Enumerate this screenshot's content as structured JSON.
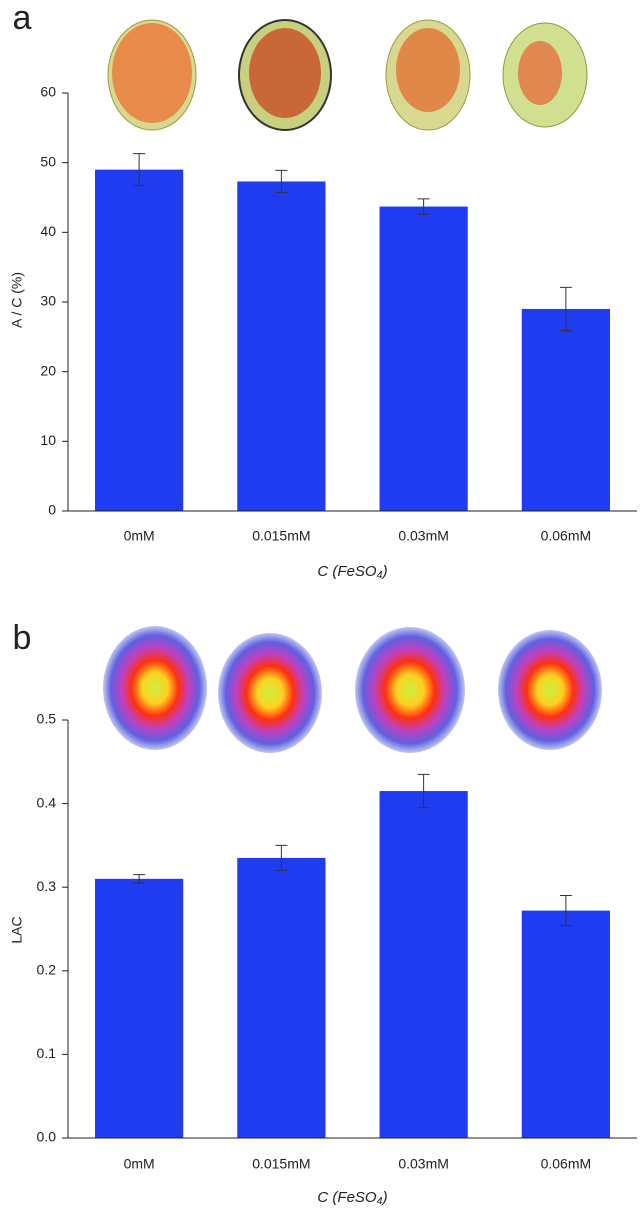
{
  "chart_data": [
    {
      "type": "bar",
      "panel_label": "a",
      "y_label": "A / C (%)",
      "x_label": "C (FeSO₄)",
      "categories": [
        "0mM",
        "0.015mM",
        "0.03mM",
        "0.06mM"
      ],
      "values": [
        49,
        47.3,
        43.7,
        29
      ],
      "errors": [
        2.3,
        1.6,
        1.1,
        3.1
      ],
      "color": "#1f3cf0",
      "ylim": [
        0,
        60
      ],
      "yticks": [
        0,
        10,
        20,
        30,
        40,
        50,
        60
      ]
    },
    {
      "type": "bar",
      "panel_label": "b",
      "y_label": "LAC",
      "x_label": "C (FeSO₄)",
      "categories": [
        "0mM",
        "0.015mM",
        "0.03mM",
        "0.06mM"
      ],
      "values": [
        0.31,
        0.335,
        0.415,
        0.272
      ],
      "errors": [
        0.005,
        0.015,
        0.02,
        0.018
      ],
      "color": "#1f3cf0",
      "ylim": [
        0,
        0.5
      ],
      "yticks": [
        {
          "value": 0,
          "label": "0.0"
        },
        0.1,
        0.2,
        0.3,
        0.4,
        0.5
      ]
    }
  ]
}
